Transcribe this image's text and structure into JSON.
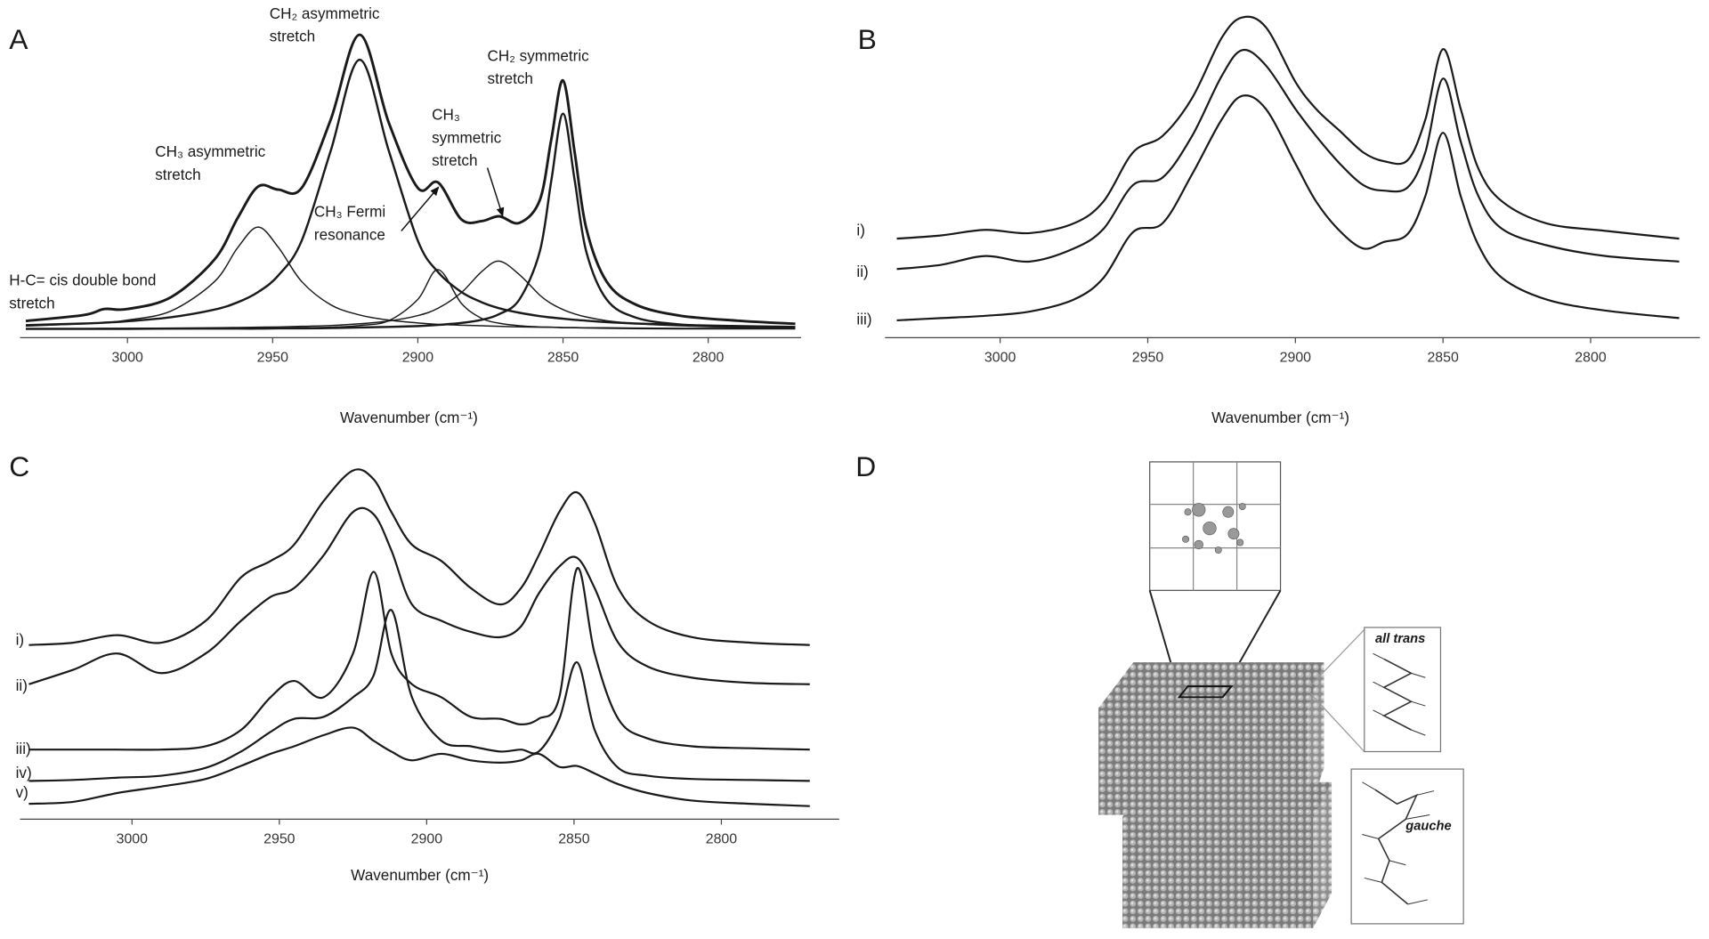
{
  "chart_data": [
    {
      "type": "line",
      "panel_label": "A",
      "color": "#1a1a1a",
      "xlabel": "Wavenumber (cm⁻¹)",
      "xlim": [
        3037,
        2768
      ],
      "ylim": [
        -3,
        108
      ],
      "xticks": [
        3000,
        2950,
        2900,
        2850,
        2800
      ],
      "annotations": [
        [
          "CH₂ asymmetric",
          "stretch"
        ],
        [
          "CH₃ asymmetric",
          "stretch"
        ],
        [
          "CH₂ symmetric",
          "stretch"
        ],
        [
          "CH₃",
          "symmetric",
          "stretch"
        ],
        [
          "CH₃ Fermi",
          "resonance"
        ],
        [
          "H-C= cis double bond",
          "stretch"
        ]
      ],
      "x": [
        3035,
        3015,
        3008,
        3000,
        2985,
        2970,
        2962,
        2955,
        2948,
        2940,
        2930,
        2920,
        2910,
        2900,
        2893,
        2885,
        2878,
        2872,
        2865,
        2858,
        2854,
        2850,
        2846,
        2842,
        2835,
        2825,
        2810,
        2790,
        2770
      ],
      "series": [
        {
          "values": [
            2.9,
            5.0,
            7.1,
            7.1,
            11.3,
            24.6,
            39.3,
            50.3,
            49.2,
            49.8,
            73.9,
            103.8,
            72.8,
            49.8,
            51.7,
            38.7,
            38.1,
            39.8,
            37.5,
            45.5,
            67.1,
            87.7,
            62.4,
            35.6,
            16.8,
            8.7,
            4.8,
            3.0,
            1.9
          ]
        },
        {
          "values": [
            1.4,
            2.0,
            2.3,
            2.8,
            4.2,
            6.9,
            9.5,
            13.1,
            19,
            31.2,
            62.9,
            95,
            62.9,
            31.2,
            20.1,
            13.1,
            9.5,
            7.4,
            5.8,
            4.6,
            4.1,
            3.7,
            3.3,
            3.0,
            2.5,
            2.0,
            1.5,
            1.1,
            0.8
          ]
        },
        {
          "values": [
            0.1,
            0.1,
            0.1,
            0.1,
            0.2,
            0.2,
            0.2,
            0.2,
            0.3,
            0.3,
            0.4,
            0.6,
            0.8,
            1.1,
            1.5,
            2.2,
            3.3,
            5.3,
            10.5,
            27.4,
            52.6,
            76,
            52.6,
            27.4,
            10.5,
            4.1,
            1.7,
            0.8,
            0.4
          ]
        },
        {
          "values": [
            1.1,
            1.9,
            2.3,
            3.2,
            6.4,
            16.8,
            28.8,
            36,
            28.8,
            16.8,
            8.6,
            5.0,
            3.2,
            2.2,
            1.7,
            1.4,
            1.2,
            1.0,
            0.8,
            0.7,
            0.7,
            0.6,
            0.6,
            0.5,
            0.5,
            0.4,
            0.3,
            0.3,
            0.2
          ]
        },
        {
          "values": [
            0.1,
            0.1,
            0.1,
            0.1,
            0.1,
            0.2,
            0.2,
            0.3,
            0.3,
            0.5,
            0.7,
            1.3,
            3.0,
            10.5,
            21,
            9.1,
            3.8,
            2.1,
            1.2,
            0.8,
            0.7,
            0.5,
            0.5,
            0.4,
            0.3,
            0.2,
            0.1,
            0.1,
            0.1
          ]
        },
        {
          "values": [
            0.2,
            0.2,
            0.3,
            0.3,
            0.4,
            0.5,
            0.6,
            0.7,
            0.8,
            1.0,
            1.3,
            1.9,
            2.9,
            4.8,
            7.4,
            12.9,
            20.3,
            24,
            19.2,
            12,
            9.0,
            6.9,
            5.4,
            4.3,
            3.0,
            2.0,
            1.2,
            0.7,
            0.4
          ]
        }
      ]
    },
    {
      "type": "line",
      "panel_label": "B",
      "color": "#1a1a1a",
      "xlabel": "Wavenumber (cm⁻¹)",
      "xlim": [
        3039,
        2763
      ],
      "ylim": [
        0,
        100
      ],
      "xticks": [
        3000,
        2950,
        2900,
        2850,
        2800
      ],
      "x": [
        3035,
        3020,
        3005,
        2990,
        2975,
        2965,
        2955,
        2945,
        2935,
        2925,
        2918,
        2910,
        2900,
        2893,
        2885,
        2877,
        2870,
        2862,
        2856,
        2850,
        2844,
        2838,
        2830,
        2815,
        2795,
        2770
      ],
      "series": [
        {
          "name": "i)",
          "values": [
            30.3,
            31.3,
            33,
            32,
            35,
            41.7,
            56.7,
            61.7,
            73.3,
            91.7,
            98,
            95,
            78.3,
            70,
            63.3,
            56.7,
            54,
            54.3,
            66.7,
            88.3,
            70,
            51.7,
            41.7,
            35,
            32.7,
            30.3
          ]
        },
        {
          "name": "ii)",
          "values": [
            21,
            22.3,
            25,
            23.3,
            27.3,
            33.3,
            46.7,
            49,
            61.7,
            80,
            88,
            83.3,
            70,
            61.7,
            53.3,
            46.7,
            45,
            46,
            56.7,
            79.3,
            60,
            43.3,
            33.3,
            28.3,
            25,
            23.3
          ]
        },
        {
          "name": "iii)",
          "values": [
            5.3,
            6,
            6.7,
            8,
            11.7,
            18.3,
            32.3,
            35,
            50,
            66.7,
            74,
            70,
            53.3,
            41.7,
            32.7,
            27.3,
            29.3,
            31.7,
            43.3,
            62.7,
            43.3,
            28.3,
            18.3,
            11.7,
            8.3,
            6
          ]
        }
      ]
    },
    {
      "type": "line",
      "panel_label": "C",
      "color": "#1a1a1a",
      "xlabel": "Wavenumber (cm⁻¹)",
      "xlim": [
        3038,
        2760
      ],
      "ylim": [
        0,
        110
      ],
      "xticks": [
        3000,
        2950,
        2900,
        2850,
        2800
      ],
      "x": [
        3035,
        3020,
        3005,
        2990,
        2975,
        2963,
        2953,
        2945,
        2935,
        2925,
        2918,
        2912,
        2905,
        2895,
        2885,
        2875,
        2868,
        2862,
        2855,
        2849,
        2843,
        2835,
        2825,
        2810,
        2790,
        2770
      ],
      "series": [
        {
          "name": "i)",
          "values": [
            53.3,
            54,
            56.3,
            54,
            60.7,
            74,
            79,
            84,
            97.3,
            106.7,
            104,
            94,
            84,
            79,
            70.7,
            65.7,
            70.7,
            80.7,
            94,
            100,
            90.7,
            70.7,
            60.7,
            55.7,
            54,
            53.3
          ]
        },
        {
          "name": "ii)",
          "values": [
            41.3,
            45.7,
            50.7,
            44.7,
            50.7,
            60.7,
            68,
            70.7,
            80.7,
            94,
            93.3,
            82.3,
            65.7,
            60.7,
            57.3,
            55.7,
            59,
            69,
            77.3,
            80,
            70.7,
            54,
            46.7,
            43.3,
            41.7,
            41.3
          ]
        },
        {
          "name": "iii)",
          "values": [
            21.3,
            21.3,
            21.3,
            21.3,
            22.3,
            27.3,
            37.3,
            42.3,
            37.3,
            50.7,
            75.7,
            50.7,
            41.3,
            37.3,
            31.3,
            30.7,
            29,
            30.7,
            37.3,
            76.7,
            50.7,
            30.7,
            24.7,
            22.3,
            21.7,
            21.3
          ]
        },
        {
          "name": "iv)",
          "values": [
            11.7,
            12,
            12.7,
            13.3,
            15.7,
            20.7,
            26.7,
            30.7,
            31.3,
            37.3,
            44,
            64,
            37.3,
            24,
            22.3,
            20.7,
            21.3,
            20.7,
            30.7,
            48,
            27.3,
            15.7,
            13.3,
            12.3,
            12,
            11.7
          ]
        },
        {
          "name": "v)",
          "values": [
            4.7,
            5.3,
            8,
            10,
            12.3,
            16.3,
            20,
            22.3,
            25.7,
            28,
            24,
            20.7,
            18,
            20,
            18,
            17.3,
            18,
            20,
            16,
            16.3,
            14,
            10.7,
            8,
            5.7,
            4.7,
            4
          ]
        }
      ]
    }
  ],
  "diagram": {
    "panel_label": "D",
    "insets": [
      "all trans",
      "gauche"
    ]
  }
}
